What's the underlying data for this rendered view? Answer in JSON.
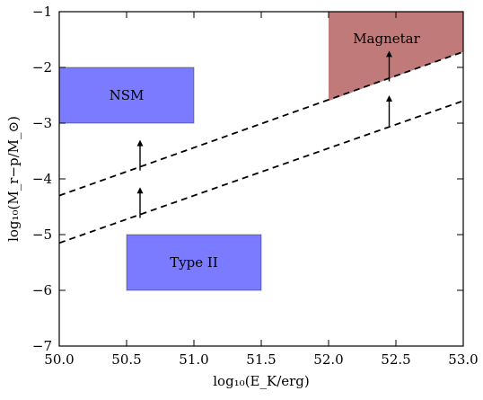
{
  "chart_data": {
    "type": "region-plot",
    "title": "",
    "xlabel": "log₁₀(E_K/erg)",
    "ylabel": "log₁₀(M_r−p/M_⊙)",
    "xlim": [
      50.0,
      53.0
    ],
    "ylim": [
      -7,
      -1
    ],
    "xticks": [
      "50.0",
      "50.5",
      "51.0",
      "51.5",
      "52.0",
      "52.5",
      "53.0"
    ],
    "yticks": [
      "−1",
      "−2",
      "−3",
      "−4",
      "−5",
      "−6",
      "−7"
    ],
    "regions": [
      {
        "label": "NSM",
        "shape": "rect",
        "x": [
          50.0,
          51.0
        ],
        "y": [
          -3.0,
          -2.0
        ],
        "color": "#7b7bff"
      },
      {
        "label": "Type II",
        "shape": "rect",
        "x": [
          50.5,
          51.5
        ],
        "y": [
          -6.0,
          -5.0
        ],
        "color": "#7b7bff"
      },
      {
        "label": "Magnetar",
        "shape": "polygon",
        "points": [
          [
            52.0,
            -2.6
          ],
          [
            53.0,
            -1.72
          ],
          [
            53.0,
            -1.0
          ],
          [
            52.0,
            -1.0
          ]
        ],
        "color": "#c07a7a"
      }
    ],
    "lines": [
      {
        "style": "dashed",
        "points": [
          [
            50.0,
            -4.3
          ],
          [
            53.0,
            -1.72
          ]
        ]
      },
      {
        "style": "dashed",
        "points": [
          [
            50.0,
            -5.15
          ],
          [
            53.0,
            -2.6
          ]
        ]
      }
    ],
    "arrows": [
      {
        "x": 50.6,
        "y_from": -3.85,
        "y_to": -3.3
      },
      {
        "x": 50.6,
        "y_from": -4.7,
        "y_to": -4.15
      },
      {
        "x": 52.45,
        "y_from": -2.25,
        "y_to": -1.7
      },
      {
        "x": 52.45,
        "y_from": -3.05,
        "y_to": -2.5
      }
    ]
  }
}
